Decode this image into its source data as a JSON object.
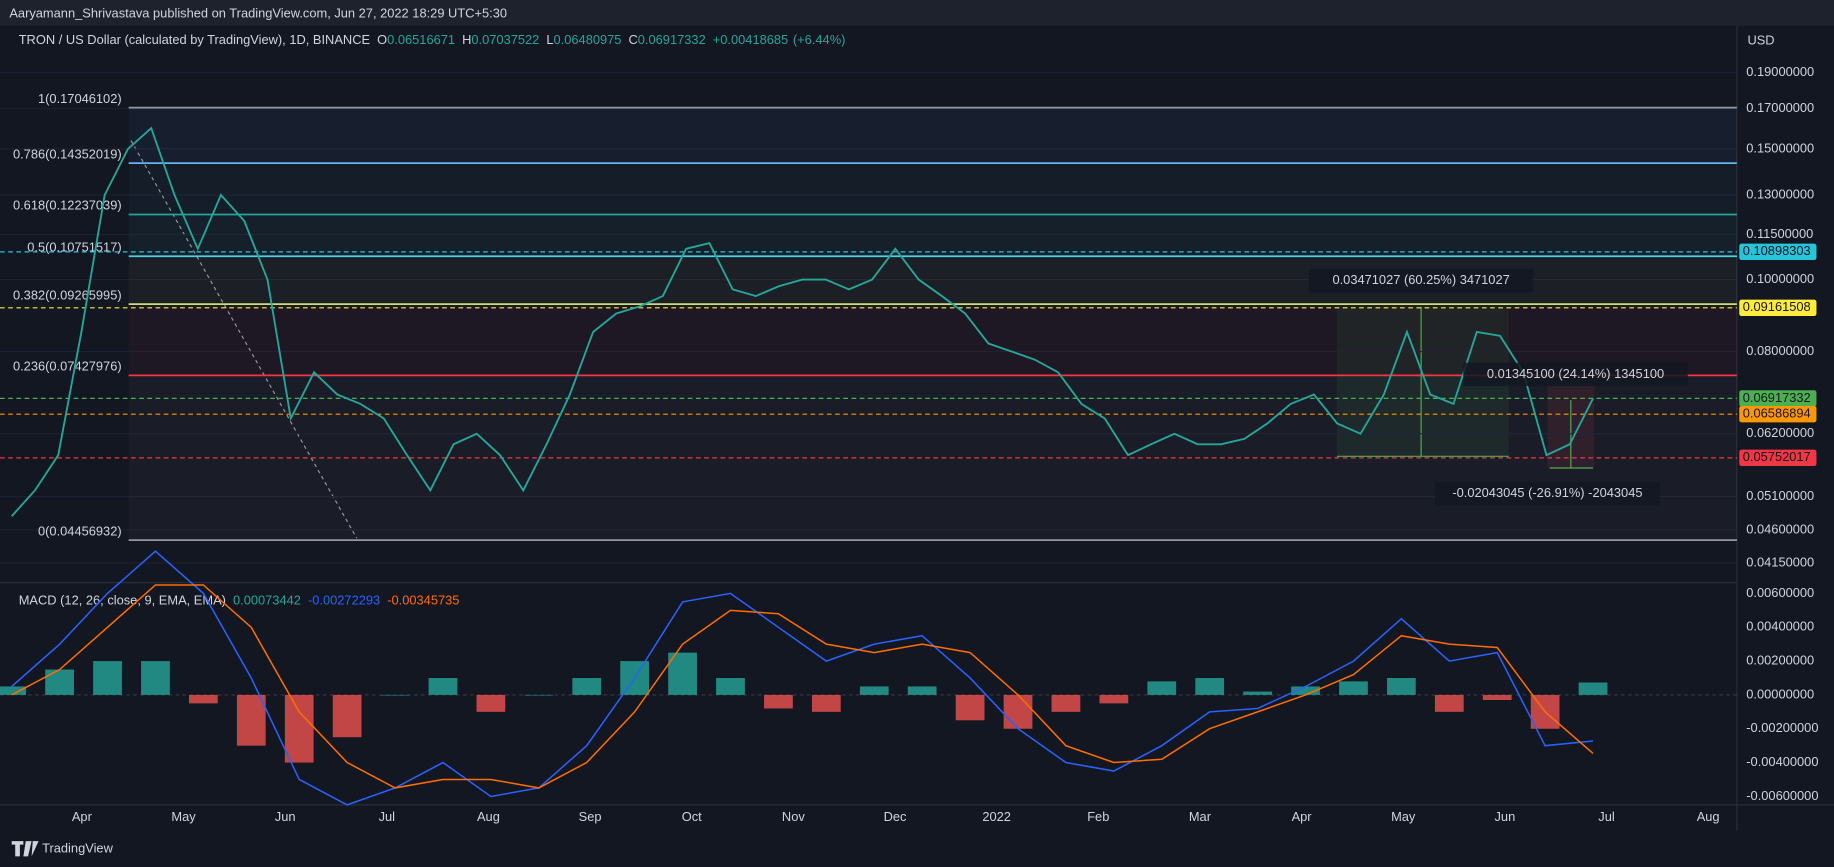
{
  "header": {
    "publisher": "Aaryamann_Shrivastava published on TradingView.com, Jun 27, 2022 18:29 UTC+5:30"
  },
  "footer": {
    "brand": "TradingView"
  },
  "chart_data": [
    {
      "type": "line",
      "title": "TRON / US Dollar (calculated by TradingView), 1D, BINANCE",
      "y_unit": "USD",
      "color": "#26a69a",
      "log_scale": true,
      "grid": true,
      "ohlc": [
        {
          "label": "O",
          "value": 0.06516671
        },
        {
          "label": "H",
          "value": 0.07037522
        },
        {
          "label": "L",
          "value": 0.06480975
        },
        {
          "label": "C",
          "value": 0.06917332
        }
      ],
      "change": {
        "value": 0.00418685,
        "label": "+0.00418685"
      },
      "change_pct": {
        "value": 6.44,
        "label": "(+6.44%)"
      },
      "values": [
        0.048,
        0.052,
        0.058,
        0.085,
        0.13,
        0.15,
        0.16,
        0.13,
        0.11,
        0.13,
        0.12,
        0.1,
        0.065,
        0.075,
        0.07,
        0.068,
        0.065,
        0.058,
        0.052,
        0.06,
        0.062,
        0.058,
        0.052,
        0.06,
        0.07,
        0.085,
        0.09,
        0.092,
        0.095,
        0.11,
        0.112,
        0.097,
        0.095,
        0.098,
        0.1,
        0.1,
        0.097,
        0.1,
        0.11,
        0.1,
        0.095,
        0.09,
        0.082,
        0.08,
        0.078,
        0.075,
        0.068,
        0.065,
        0.058,
        0.06,
        0.062,
        0.06,
        0.06,
        0.061,
        0.064,
        0.068,
        0.07,
        0.064,
        0.062,
        0.07,
        0.085,
        0.07,
        0.068,
        0.085,
        0.084,
        0.075,
        0.058,
        0.06,
        0.06917332
      ],
      "x_labels": [
        "Apr",
        "May",
        "Jun",
        "Jul",
        "Aug",
        "Sep",
        "Oct",
        "Nov",
        "Dec",
        "2022",
        "Feb",
        "Mar",
        "Apr",
        "May",
        "Jun",
        "Jul",
        "Aug"
      ],
      "ylim": [
        0.0392,
        0.2197
      ],
      "yticks": [
        {
          "value": 0.19,
          "label": "0.19000000"
        },
        {
          "value": 0.17,
          "label": "0.17000000"
        },
        {
          "value": 0.15,
          "label": "0.15000000"
        },
        {
          "value": 0.13,
          "label": "0.13000000"
        },
        {
          "value": 0.115,
          "label": "0.11500000"
        },
        {
          "value": 0.1,
          "label": "0.10000000"
        },
        {
          "value": 0.08,
          "label": "0.08000000"
        },
        {
          "value": 0.062,
          "label": "0.06200000"
        },
        {
          "value": 0.051,
          "label": "0.05100000"
        },
        {
          "value": 0.046,
          "label": "0.04600000"
        },
        {
          "value": 0.0415,
          "label": "0.04150000"
        }
      ],
      "fib_levels": [
        {
          "value": 0.17046102,
          "label": "1(0.17046102)",
          "color": "#9598a1"
        },
        {
          "value": 0.14352019,
          "label": "0.786(0.14352019)",
          "color": "#64b5f6"
        },
        {
          "value": 0.12237039,
          "label": "0.618(0.12237039)",
          "color": "#26a69a"
        },
        {
          "value": 0.10751517,
          "label": "0.5(0.10751517)",
          "color": "#4dd0e1"
        },
        {
          "value": 0.09265995,
          "label": "0.382(0.09265995)",
          "color": "#c6e07a"
        },
        {
          "value": 0.07427976,
          "label": "0.236(0.07427976)",
          "color": "#f23645"
        },
        {
          "value": 0.04456932,
          "label": "0(0.04456932)",
          "color": "#9598a1"
        }
      ],
      "price_markers": [
        {
          "value": 0.10898303,
          "color": "#26c6da"
        },
        {
          "value": 0.09161508,
          "color": "#ffeb3b"
        },
        {
          "value": 0.06917332,
          "color": "#4caf50"
        },
        {
          "value": 0.06586894,
          "color": "#ff9800"
        },
        {
          "value": 0.05752017,
          "color": "#f23645"
        }
      ],
      "annotations": [
        {
          "text": "0.03471027 (60.25%) 3471027",
          "color": "#4caf50"
        },
        {
          "text": "0.01345100 (24.14%) 1345100",
          "color": "#4caf50"
        },
        {
          "text": "-0.02043045 (-26.91%) -2043045",
          "color": "#f23645"
        }
      ]
    },
    {
      "type": "macd",
      "title": "MACD (12, 26, close, 9, EMA, EMA)",
      "ylim": [
        -0.0065,
        0.0065
      ],
      "negative_color": "#ef5350",
      "yticks": [
        {
          "value": 0.006,
          "label": "0.00600000"
        },
        {
          "value": 0.004,
          "label": "0.00400000"
        },
        {
          "value": 0.002,
          "label": "0.00200000"
        },
        {
          "value": 0,
          "label": "0.00000000"
        },
        {
          "value": -0.002,
          "label": "-0.00200000"
        },
        {
          "value": -0.004,
          "label": "-0.00400000"
        },
        {
          "value": -0.006,
          "label": "-0.00600000"
        }
      ],
      "series": [
        {
          "color": "#26a69a",
          "values": [
            0.0005,
            0.0015,
            0.002,
            0.002,
            -0.0005,
            -0.003,
            -0.004,
            -0.0025,
            0,
            0.001,
            -0.001,
            0,
            0.001,
            0.002,
            0.0025,
            0.001,
            -0.0008,
            -0.001,
            0.0005,
            0.0005,
            -0.0015,
            -0.002,
            -0.001,
            -0.0005,
            0.0008,
            0.001,
            0.0002,
            0.0005,
            0.0008,
            0.001,
            -0.001,
            -0.0003,
            -0.002,
            0.00073442
          ]
        },
        {
          "color": "#2962ff",
          "values": [
            0.0005,
            0.003,
            0.006,
            0.0085,
            0.006,
            0.001,
            -0.005,
            -0.0065,
            -0.0055,
            -0.004,
            -0.006,
            -0.0055,
            -0.003,
            0.001,
            0.0055,
            0.006,
            0.004,
            0.002,
            0.003,
            0.0035,
            0.001,
            -0.002,
            -0.004,
            -0.0045,
            -0.003,
            -0.001,
            -0.0008,
            0.0005,
            0.002,
            0.0045,
            0.002,
            0.0025,
            -0.003,
            -0.00272293
          ]
        },
        {
          "color": "#ff6d00",
          "values": [
            0,
            0.0015,
            0.004,
            0.0065,
            0.0065,
            0.004,
            -0.001,
            -0.004,
            -0.0055,
            -0.005,
            -0.005,
            -0.0055,
            -0.004,
            -0.001,
            0.003,
            0.005,
            0.0048,
            0.003,
            0.0025,
            0.003,
            0.0025,
            0,
            -0.003,
            -0.004,
            -0.0038,
            -0.002,
            -0.001,
            0,
            0.0012,
            0.0035,
            0.003,
            0.0028,
            -0.001,
            -0.00345735
          ]
        }
      ]
    }
  ]
}
